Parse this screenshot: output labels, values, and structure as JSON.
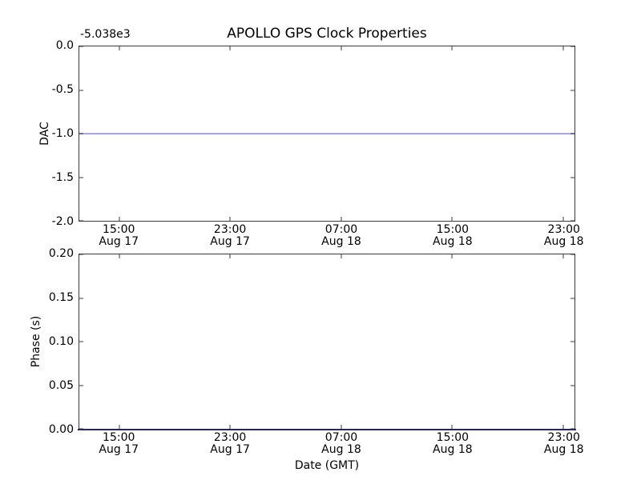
{
  "title": "APOLLO GPS Clock Properties",
  "colors": {
    "line_blue": "#8080d8",
    "spine": "#3a3a3a",
    "axis_overlap_navy": "#27275e",
    "background": "#ffffff"
  },
  "top_chart": {
    "ylabel": "DAC",
    "offset_text": "-5.038e3",
    "ytick_labels": [
      "0.0",
      "-0.5",
      "-1.0",
      "-1.5",
      "-2.0"
    ],
    "line_value": -1.0
  },
  "bottom_chart": {
    "ylabel": "Phase (s)",
    "xlabel": "Date (GMT)",
    "ytick_labels": [
      "0.20",
      "0.15",
      "0.10",
      "0.05",
      "0.00"
    ],
    "line_value": 0.0
  },
  "xticks": [
    {
      "time": "15:00",
      "date": "Aug 17"
    },
    {
      "time": "23:00",
      "date": "Aug 17"
    },
    {
      "time": "07:00",
      "date": "Aug 18"
    },
    {
      "time": "15:00",
      "date": "Aug 18"
    },
    {
      "time": "23:00",
      "date": "Aug 18"
    }
  ],
  "layout_hints": {
    "xticks_pct": [
      8.1,
      30.5,
      52.9,
      75.3,
      97.7
    ],
    "yticks_pct": [
      0,
      25,
      50,
      75,
      100
    ]
  },
  "chart_data": [
    {
      "type": "line",
      "title": "APOLLO GPS Clock Properties",
      "xlabel": "",
      "ylabel": "DAC",
      "y_offset_text": "-5.038e3",
      "ylim": [
        -2.0,
        0.0
      ],
      "yticks": [
        0.0,
        -0.5,
        -1.0,
        -1.5,
        -2.0
      ],
      "x_tick_labels": [
        "15:00 Aug 17",
        "23:00 Aug 17",
        "07:00 Aug 18",
        "15:00 Aug 18",
        "23:00 Aug 18"
      ],
      "series": [
        {
          "name": "DAC",
          "color": "blue",
          "x": [
            "start of axis (~12:00 Aug 17)",
            "end of axis (~23:50 Aug 18)"
          ],
          "values": [
            -1.0,
            -1.0
          ]
        }
      ],
      "grid": false,
      "legend": false
    },
    {
      "type": "line",
      "title": "",
      "xlabel": "Date (GMT)",
      "ylabel": "Phase (s)",
      "ylim": [
        0.0,
        0.2
      ],
      "yticks": [
        0.2,
        0.15,
        0.1,
        0.05,
        0.0
      ],
      "x_tick_labels": [
        "15:00 Aug 17",
        "23:00 Aug 17",
        "07:00 Aug 18",
        "15:00 Aug 18",
        "23:00 Aug 18"
      ],
      "series": [
        {
          "name": "Phase",
          "color": "blue",
          "x": [
            "start of axis (~12:00 Aug 17)",
            "end of axis (~23:50 Aug 18)"
          ],
          "values": [
            0.0,
            0.0
          ]
        }
      ],
      "grid": false,
      "legend": false
    }
  ]
}
